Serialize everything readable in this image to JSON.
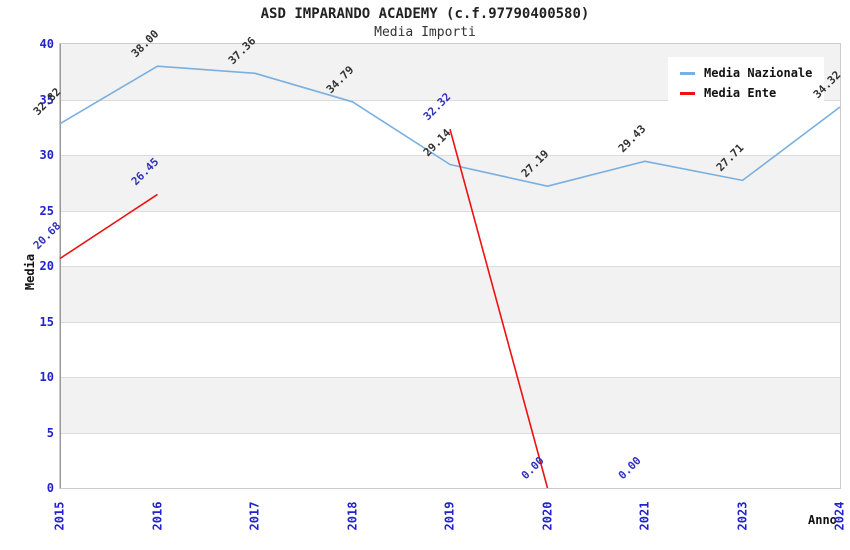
{
  "chart_data": {
    "type": "line",
    "title": "ASD IMPARANDO ACADEMY (c.f.97790400580)",
    "subtitle": "Media Importi",
    "xlabel": "Anno",
    "ylabel": "Media",
    "ylim": [
      0,
      40
    ],
    "ytick_step": 5,
    "grid": "horizontal-bands-alternating",
    "legend_position": "top-right",
    "categories": [
      "2015",
      "2016",
      "2017",
      "2018",
      "2019",
      "2020",
      "2021",
      "2023",
      "2024"
    ],
    "series": [
      {
        "name": "Media Nazionale",
        "color": "#7ab0e0",
        "label_color": "#333333",
        "values": [
          32.82,
          38.0,
          37.36,
          34.79,
          29.14,
          27.19,
          29.43,
          27.71,
          34.32
        ],
        "segments": [
          [
            0,
            8
          ]
        ]
      },
      {
        "name": "Media Ente",
        "color": "#ee1111",
        "label_color": "#3333bb",
        "values": [
          20.68,
          26.45,
          null,
          null,
          32.32,
          0.0,
          0.0,
          null,
          null
        ],
        "segments": [
          [
            0,
            1
          ],
          [
            4,
            5
          ]
        ]
      }
    ],
    "colors": {
      "tick_text": "#2222cc",
      "band_gray": "#f2f2f2",
      "gridline": "#dcdcdc",
      "plot_border": "#cccccc",
      "axis_left": "#999999"
    }
  }
}
